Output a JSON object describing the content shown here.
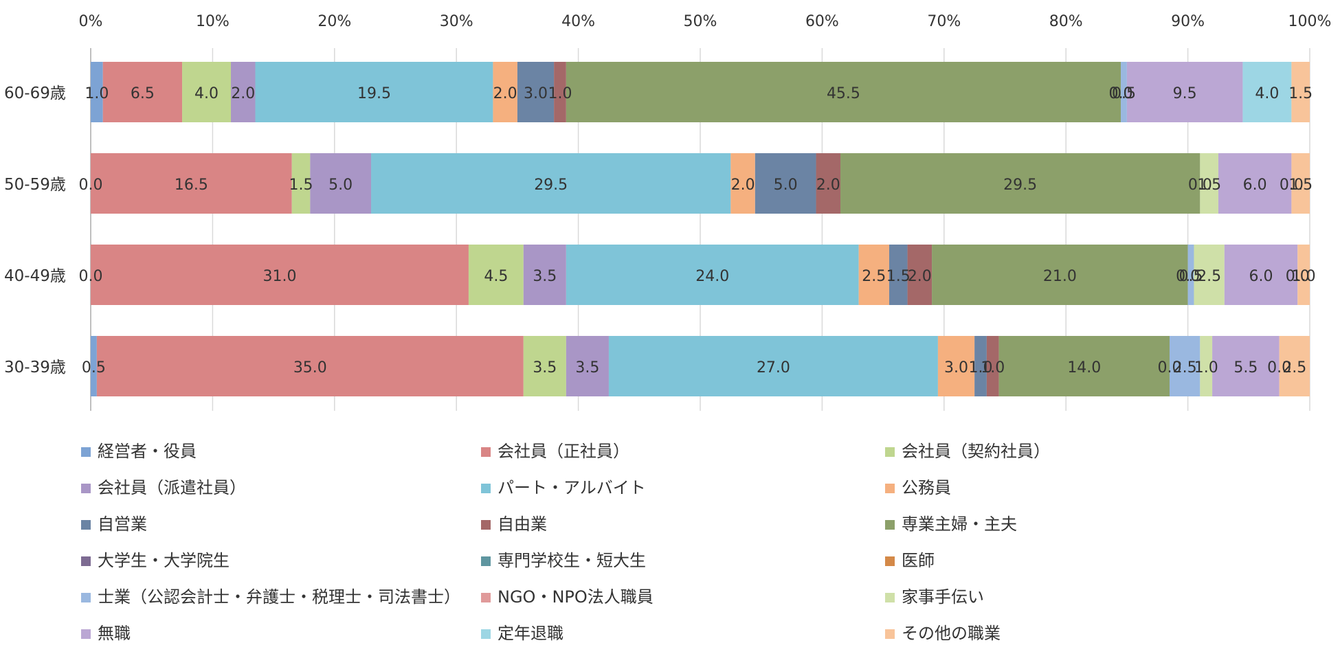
{
  "chart_data": {
    "type": "bar",
    "orientation": "horizontal",
    "stacked": "percent",
    "x_ticks": [
      "0%",
      "10%",
      "20%",
      "30%",
      "40%",
      "50%",
      "60%",
      "70%",
      "80%",
      "90%",
      "100%"
    ],
    "xlim": [
      0,
      100
    ],
    "grid": true,
    "legend_position": "bottom",
    "categories": [
      "60-69歳",
      "50-59歳",
      "40-49歳",
      "30-39歳"
    ],
    "series": [
      {
        "name": "経営者・役員",
        "color": "#7da3d4",
        "values": [
          1.0,
          0.0,
          0.0,
          0.5
        ],
        "labels": [
          "1.0",
          "0.0",
          "0.0",
          "0.5"
        ]
      },
      {
        "name": "会社員（正社員）",
        "color": "#d98585",
        "values": [
          6.5,
          16.5,
          31.0,
          35.0
        ],
        "labels": [
          "6.5",
          "16.5",
          "31.0",
          "35.0"
        ]
      },
      {
        "name": "会社員（契約社員）",
        "color": "#bfd68f",
        "values": [
          4.0,
          1.5,
          4.5,
          3.5
        ],
        "labels": [
          "4.0",
          "1.5",
          "4.5",
          "3.5"
        ]
      },
      {
        "name": "会社員（派遣社員）",
        "color": "#a996c6",
        "values": [
          2.0,
          5.0,
          3.5,
          3.5
        ],
        "labels": [
          "2.0",
          "5.0",
          "3.5",
          "3.5"
        ]
      },
      {
        "name": "パート・アルバイト",
        "color": "#7fc4d8",
        "values": [
          19.5,
          29.5,
          24.0,
          27.0
        ],
        "labels": [
          "19.5",
          "29.5",
          "24.0",
          "27.0"
        ]
      },
      {
        "name": "公務員",
        "color": "#f5b07f",
        "values": [
          2.0,
          2.0,
          2.5,
          3.0
        ],
        "labels": [
          "2.0",
          "2.0",
          "2.5",
          "3.0"
        ]
      },
      {
        "name": "自営業",
        "color": "#6b84a4",
        "values": [
          3.0,
          5.0,
          1.5,
          1.0
        ],
        "labels": [
          "3.0",
          "5.0",
          "1.5",
          "1.0"
        ]
      },
      {
        "name": "自由業",
        "color": "#a46868",
        "values": [
          1.0,
          2.0,
          2.0,
          1.0
        ],
        "labels": [
          "1.0",
          "2.0",
          "2.0",
          "1.0"
        ]
      },
      {
        "name": "専業主婦・主夫",
        "color": "#8ca06a",
        "values": [
          45.5,
          29.5,
          21.0,
          14.0
        ],
        "labels": [
          "45.5",
          "29.5",
          "21.0",
          "14.0"
        ]
      },
      {
        "name": "大学生・大学院生",
        "color": "#7d6b92",
        "values": [
          0.0,
          0.0,
          0.0,
          0.0
        ],
        "labels": [
          "0.0",
          "",
          "0.0",
          "0.0"
        ]
      },
      {
        "name": "専門学校生・短大生",
        "color": "#5f96a0",
        "values": [
          0.0,
          0.0,
          0.0,
          0.0
        ],
        "labels": [
          "0.0",
          "",
          "",
          ""
        ]
      },
      {
        "name": "医師",
        "color": "#d48948",
        "values": [
          0.0,
          0.0,
          0.0,
          0.0
        ],
        "labels": [
          "",
          "",
          "",
          ""
        ]
      },
      {
        "name": "士業（公認会計士・弁護士・税理士・司法書士）",
        "color": "#9ab8e0",
        "values": [
          0.5,
          0.0,
          0.5,
          2.5
        ],
        "labels": [
          "0.5",
          "0.0",
          "0.5",
          "2.5"
        ]
      },
      {
        "name": "NGO・NPO法人職員",
        "color": "#e09a9a",
        "values": [
          0.0,
          0.0,
          0.0,
          0.0
        ],
        "labels": [
          "",
          "",
          "",
          ""
        ]
      },
      {
        "name": "家事手伝い",
        "color": "#cfe0a8",
        "values": [
          0.0,
          1.5,
          2.5,
          1.0
        ],
        "labels": [
          "",
          "1.5",
          "2.5",
          "1.0"
        ]
      },
      {
        "name": "無職",
        "color": "#bba7d4",
        "values": [
          9.5,
          6.0,
          6.0,
          5.5
        ],
        "labels": [
          "9.5",
          "6.0",
          "6.0",
          "5.5"
        ]
      },
      {
        "name": "定年退職",
        "color": "#9dd6e4",
        "values": [
          4.0,
          0.0,
          0.0,
          0.0
        ],
        "labels": [
          "4.0",
          "0.0",
          "0.0",
          "0.0"
        ]
      },
      {
        "name": "その他の職業",
        "color": "#f8c49a",
        "values": [
          1.5,
          1.5,
          1.0,
          2.5
        ],
        "labels": [
          "1.5",
          "1.5",
          "1.0",
          "2.5"
        ]
      }
    ]
  }
}
